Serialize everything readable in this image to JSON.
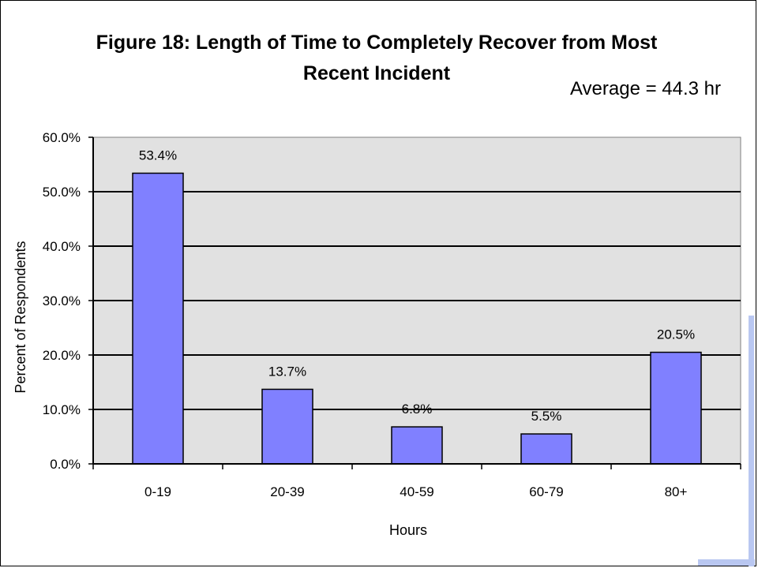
{
  "chart_data": {
    "type": "bar",
    "title": "Figure 18:  Length of Time to Completely Recover from Most Recent Incident",
    "title_lines": [
      "Figure 18:  Length of Time to Completely Recover from Most",
      "Recent Incident"
    ],
    "annotation": "Average = 44.3 hr",
    "categories": [
      "0-19",
      "20-39",
      "40-59",
      "60-79",
      "80+"
    ],
    "values": [
      53.4,
      13.7,
      6.8,
      5.5,
      20.5
    ],
    "data_labels": [
      "53.4%",
      "13.7%",
      "6.8%",
      "5.5%",
      "20.5%"
    ],
    "yticks": [
      0,
      10,
      20,
      30,
      40,
      50,
      60
    ],
    "ytick_labels": [
      "0.0%",
      "10.0%",
      "20.0%",
      "30.0%",
      "40.0%",
      "50.0%",
      "60.0%"
    ],
    "ylim": [
      0,
      60
    ],
    "xlabel": "Hours",
    "ylabel": "Percent of Respondents",
    "grid": true,
    "colors": {
      "bar": "#8080ff",
      "plot_background": "#e1e1e1",
      "gridline": "#000000",
      "accent_decoration": "#b9c7f1"
    }
  }
}
